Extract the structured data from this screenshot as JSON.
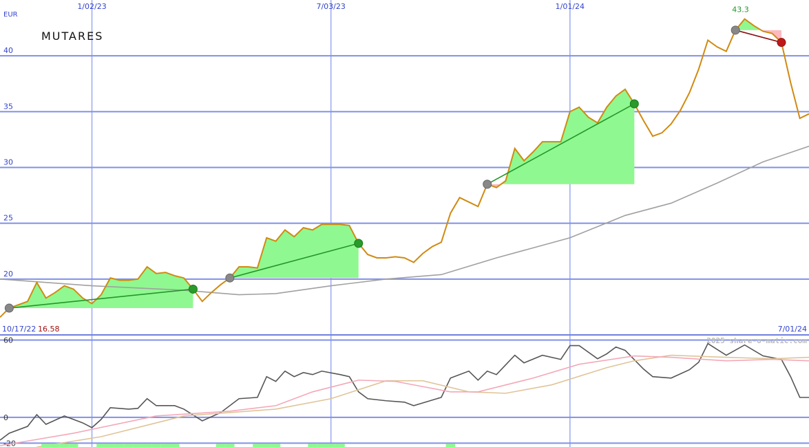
{
  "chart_data": [
    {
      "type": "line",
      "title": "MUTARES",
      "unit": "EUR",
      "range_labels": [
        "10/17/22",
        "7/01/24"
      ],
      "xlim": [
        0,
        88
      ],
      "xticks": [
        {
          "value": 10,
          "label": "1/02/23"
        },
        {
          "value": 36,
          "label": "7/03/23"
        },
        {
          "value": 62,
          "label": "1/01/24"
        }
      ],
      "ylim": [
        15,
        45
      ],
      "yticks": [
        20,
        25,
        30,
        35,
        40
      ],
      "grid": true,
      "series": [
        {
          "color": "#d08a10",
          "values": [
            16.58,
            17.4,
            17.7,
            18.0,
            19.7,
            18.3,
            18.8,
            19.4,
            19.1,
            18.3,
            17.8,
            18.6,
            20.1,
            19.9,
            19.9,
            20.0,
            21.1,
            20.5,
            20.6,
            20.3,
            20.1,
            19.1,
            18.0,
            18.8,
            19.5,
            20.1,
            21.1,
            21.1,
            21.0,
            23.7,
            23.4,
            24.4,
            23.8,
            24.6,
            24.4,
            24.9,
            24.9,
            24.9,
            24.8,
            23.2,
            22.2,
            21.9,
            21.9,
            22.0,
            21.9,
            21.5,
            22.3,
            22.9,
            23.3,
            25.9,
            27.3,
            26.9,
            26.5,
            28.5,
            28.2,
            28.8,
            31.7,
            30.6,
            31.4,
            32.3,
            32.3,
            32.3,
            35.0,
            35.4,
            34.5,
            34.0,
            35.4,
            36.4,
            37.0,
            35.7,
            34.2,
            32.8,
            33.1,
            33.9,
            35.1,
            36.7,
            38.8,
            41.4,
            40.8,
            40.4,
            42.3,
            43.3,
            42.7,
            42.2,
            42.0,
            41.2,
            37.6,
            34.4,
            34.8
          ]
        },
        {
          "color": "#a0a0a0",
          "x": [
            0,
            10,
            20,
            26,
            30,
            36,
            42,
            48,
            54,
            62,
            68,
            73,
            78,
            83,
            88
          ],
          "values": [
            20.0,
            19.4,
            19.0,
            18.6,
            18.7,
            19.4,
            20.0,
            20.4,
            21.9,
            23.7,
            25.7,
            26.8,
            28.6,
            30.5,
            31.9
          ]
        }
      ],
      "trades": [
        {
          "entry": 1,
          "exit": 21
        },
        {
          "entry": 25,
          "exit": 39
        },
        {
          "entry": 53,
          "exit": 69
        },
        {
          "entry": 80,
          "exit": 85
        }
      ]
    },
    {
      "type": "line",
      "watermark": "2025 share-o-matic.com",
      "xlim": [
        0,
        88
      ],
      "xticks": [
        10,
        36,
        62
      ],
      "ylim": [
        -23,
        64
      ],
      "yticks": [
        60,
        0,
        -20
      ],
      "grid": true,
      "series": [
        {
          "type": "bar",
          "color": "#90f890",
          "x": [
            5,
            6,
            7,
            8,
            11,
            12,
            13,
            14,
            15,
            16,
            17,
            18,
            19,
            24,
            25,
            28,
            29,
            30,
            34,
            35,
            36,
            37,
            49
          ],
          "values": [
            -20.5,
            -20.5,
            -20.5,
            -20.5,
            -20.5,
            -20.5,
            -20.5,
            -20.5,
            -20.5,
            -20.5,
            -20.5,
            -20.5,
            -20.5,
            -20.5,
            -20.5,
            -20.5,
            -20.5,
            -20.5,
            -20.5,
            -20.5,
            -20.5,
            -20.5,
            -20.5
          ]
        },
        {
          "color": "#f4a8b8",
          "x": [
            0,
            8,
            17,
            25,
            30,
            34,
            39,
            43,
            49,
            52,
            58,
            63,
            69,
            73,
            79,
            84,
            88
          ],
          "values": [
            -22.0,
            -12.3,
            1.1,
            4.8,
            9.1,
            19.8,
            28.9,
            27.9,
            19.8,
            19.8,
            30.5,
            41.2,
            47.7,
            46.6,
            43.9,
            45.0,
            43.9
          ]
        },
        {
          "color": "#e0c498",
          "x": [
            4,
            11,
            20,
            30,
            36,
            42,
            46,
            51,
            55,
            60,
            66,
            69,
            73,
            79,
            84,
            88
          ],
          "values": [
            -23.0,
            -15.0,
            1.1,
            6.4,
            14.5,
            28.4,
            28.4,
            19.8,
            18.7,
            25.2,
            38.6,
            43.9,
            48.2,
            46.6,
            45.5,
            46.6
          ]
        },
        {
          "color": "#555555",
          "x": [
            0,
            1,
            3,
            4,
            5,
            7,
            9,
            10,
            11,
            12,
            14,
            15,
            16,
            17,
            19,
            20,
            22,
            24,
            26,
            28,
            29,
            30,
            31,
            32,
            33,
            34,
            35,
            37,
            38,
            39,
            40,
            42,
            44,
            45,
            48,
            49,
            51,
            52,
            53,
            54,
            56,
            57,
            59,
            61,
            62,
            63,
            65,
            66,
            67,
            68,
            70,
            71,
            73,
            75,
            76,
            77,
            79,
            81,
            83,
            85,
            86,
            87,
            88
          ],
          "values": [
            -17.7,
            -12.3,
            -7.0,
            2.1,
            -5.4,
            1.1,
            -4.3,
            -8.0,
            -1.6,
            7.5,
            6.4,
            7.0,
            14.5,
            9.1,
            9.1,
            6.4,
            -2.7,
            3.7,
            14.5,
            15.5,
            31.6,
            27.9,
            35.9,
            31.6,
            34.8,
            33.2,
            35.9,
            33.2,
            31.6,
            19.8,
            14.5,
            12.9,
            11.8,
            9.1,
            15.5,
            30.5,
            35.9,
            28.9,
            35.9,
            33.2,
            48.2,
            42.3,
            48.2,
            45.0,
            55.7,
            55.7,
            45.5,
            49.3,
            54.6,
            52.0,
            37.5,
            31.6,
            30.5,
            37.0,
            42.8,
            57.3,
            48.2,
            56.2,
            47.7,
            45.0,
            31.6,
            15.5,
            15.5
          ]
        }
      ]
    }
  ]
}
